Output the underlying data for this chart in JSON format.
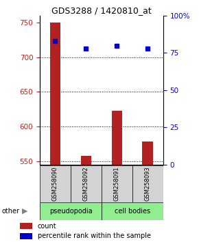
{
  "title": "GDS3288 / 1420810_at",
  "samples": [
    "GSM258090",
    "GSM258092",
    "GSM258091",
    "GSM258093"
  ],
  "bar_values": [
    750,
    558,
    623,
    578
  ],
  "bar_bottom": 545,
  "percentile_values": [
    83,
    78,
    80,
    78
  ],
  "ylim_left": [
    545,
    760
  ],
  "ylim_right": [
    0,
    100
  ],
  "yticks_left": [
    550,
    600,
    650,
    700,
    750
  ],
  "yticks_right": [
    0,
    25,
    50,
    75,
    100
  ],
  "ytick_right_labels": [
    "0",
    "25",
    "50",
    "75",
    "100%"
  ],
  "bar_color": "#b22222",
  "percentile_color": "#0000cc",
  "group_bg_pseudo": "#90EE90",
  "group_bg_cell": "#90EE90",
  "sample_area_color": "#d3d3d3",
  "group_label_pseudopodia": "pseudopodia",
  "group_label_cell_bodies": "cell bodies",
  "other_label": "other",
  "legend_count_color": "#b22222",
  "legend_pct_color": "#0000cc",
  "bar_width": 0.35,
  "left_tick_color": "#b22222",
  "right_tick_color": "#0000cc"
}
